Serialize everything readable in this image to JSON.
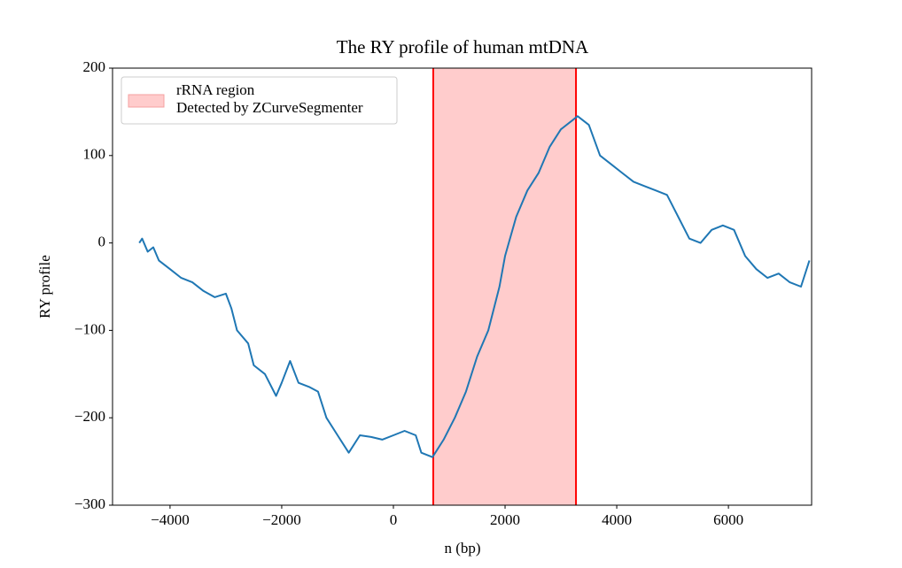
{
  "chart_data": {
    "type": "line",
    "title": "The RY profile of human mtDNA",
    "x_label": "n (bp)",
    "y_label": "RY profile",
    "xlim": [
      -5030,
      7490
    ],
    "ylim": [
      -300,
      200
    ],
    "xticks": [
      {
        "value": -4000,
        "label": "−4000"
      },
      {
        "value": -2000,
        "label": "−2000"
      },
      0,
      2000,
      4000,
      6000
    ],
    "yticks": [
      {
        "value": -300,
        "label": "−300"
      },
      {
        "value": -200,
        "label": "−200"
      },
      {
        "value": -100,
        "label": "−100"
      },
      0,
      100,
      200
    ],
    "legend_position": "upper left",
    "region": {
      "start": 714,
      "end": 3270,
      "color": "#ffcccc",
      "edge_color": "#ff0000",
      "label": [
        "rRNA region",
        "Detected by ZCurveSegmenter"
      ]
    },
    "series": [
      {
        "color": "#1f77b4",
        "x": [
          -4550,
          -4500,
          -4400,
          -4300,
          -4200,
          -4000,
          -3800,
          -3600,
          -3400,
          -3200,
          -3000,
          -2900,
          -2800,
          -2600,
          -2500,
          -2300,
          -2100,
          -2000,
          -1850,
          -1700,
          -1500,
          -1350,
          -1200,
          -1000,
          -800,
          -600,
          -400,
          -200,
          0,
          200,
          400,
          500,
          700,
          900,
          1100,
          1300,
          1500,
          1700,
          1900,
          2000,
          2200,
          2400,
          2600,
          2800,
          3000,
          3200,
          3300,
          3500,
          3700,
          3900,
          4100,
          4300,
          4500,
          4700,
          4900,
          5100,
          5300,
          5500,
          5700,
          5900,
          6100,
          6300,
          6500,
          6700,
          6900,
          7100,
          7300,
          7450
        ],
        "values": [
          0,
          5,
          -10,
          -5,
          -20,
          -30,
          -40,
          -45,
          -55,
          -62,
          -58,
          -75,
          -100,
          -115,
          -140,
          -150,
          -175,
          -160,
          -135,
          -160,
          -165,
          -170,
          -200,
          -220,
          -240,
          -220,
          -222,
          -225,
          -220,
          -215,
          -220,
          -240,
          -245,
          -225,
          -200,
          -170,
          -130,
          -100,
          -50,
          -15,
          30,
          60,
          80,
          110,
          130,
          140,
          145,
          135,
          100,
          90,
          80,
          70,
          65,
          60,
          55,
          30,
          5,
          0,
          15,
          20,
          15,
          -15,
          -30,
          -40,
          -35,
          -45,
          -50,
          -20
        ]
      }
    ]
  }
}
